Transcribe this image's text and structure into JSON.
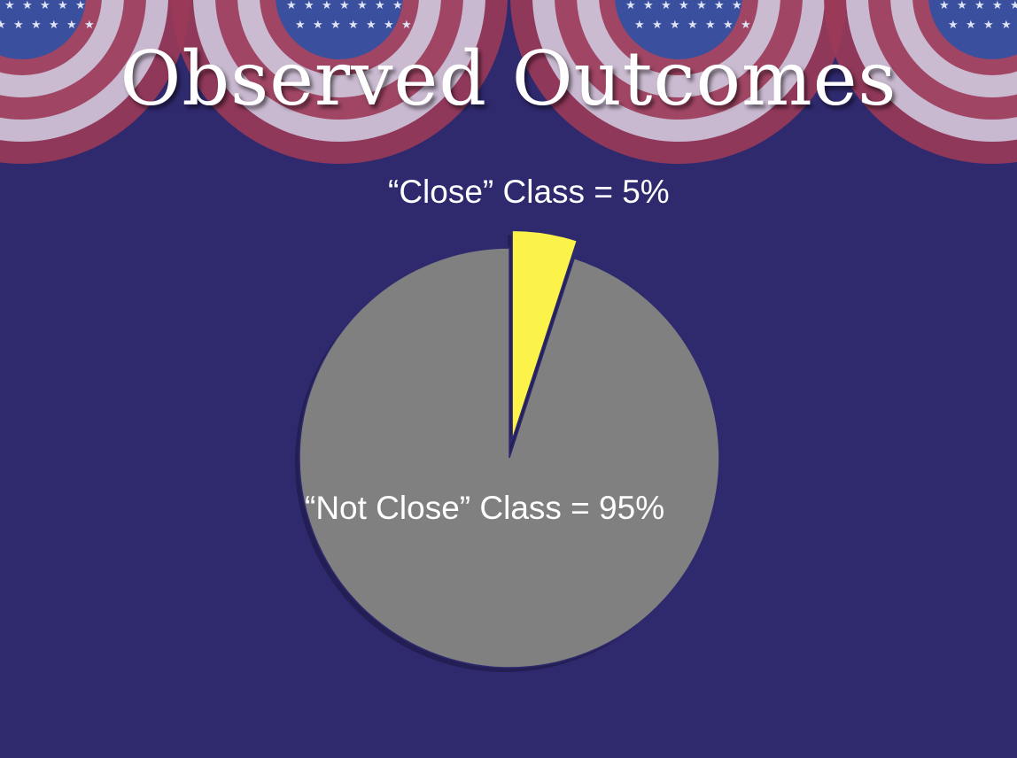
{
  "title": "Observed Outcomes",
  "colors": {
    "background": "#2f2a6e",
    "bunting_red": "#9b3a58",
    "bunting_white": "#cfc8dd",
    "bunting_blue": "#3a4f9e"
  },
  "chart_data": {
    "type": "pie",
    "slices": [
      {
        "category": "“Close” Class",
        "value": 5,
        "label": "“Close” Class =  5%",
        "color": "#fbf34a",
        "exploded": true
      },
      {
        "category": "“Not Close” Class",
        "value": 95,
        "label": "“Not Close” Class =  95%",
        "color": "#808080",
        "exploded": false
      }
    ]
  }
}
